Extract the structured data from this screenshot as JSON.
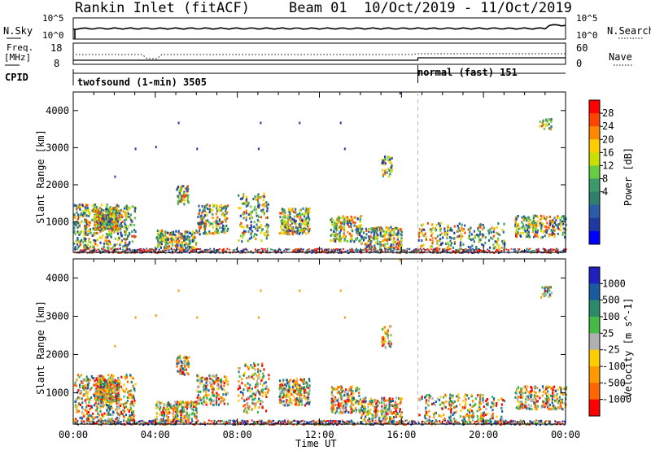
{
  "header": {
    "station": "Rankin Inlet (fitACF)",
    "beam": "Beam 01",
    "date_range": "10/Oct/2019 - 11/Oct/2019"
  },
  "top_panels": {
    "nsky_label": "N.Sky",
    "nsky_tick_top": "10^5",
    "nsky_tick_bottom": "10^0",
    "nsearch_label": "N.Search",
    "nsearch_tick_top": "10^5",
    "nsearch_tick_bottom": "10^0",
    "freq_label_1": "Freq.",
    "freq_label_2": "[MHz]",
    "freq_tick_top": "18",
    "freq_tick_bottom": "8",
    "nave_label": "Nave",
    "nave_tick_top": "60",
    "nave_tick_bottom": "0",
    "cpid_label": "CPID",
    "cpid_mode_1": "twofsound (1-min) 3505",
    "cpid_mode_2": "normal (fast) 151"
  },
  "panels": {
    "power": {
      "ylabel": "Slant Range [km]",
      "cbar_label": "Power [dB]",
      "cbar_ticks": [
        "28",
        "24",
        "20",
        "16",
        "12",
        "8",
        "4"
      ],
      "cbar_colors": [
        "#ff0000",
        "#ff4400",
        "#ff8800",
        "#ffcc00",
        "#ccdd00",
        "#66cc44",
        "#3a9a6a",
        "#2f7f6f",
        "#2a5aaa",
        "#1e3aa0",
        "#0000ff"
      ]
    },
    "velocity": {
      "ylabel": "Slant Range [km]",
      "cbar_label": "Velocity [m s^-1]",
      "cbar_ticks": [
        "1000",
        "500",
        "100",
        "25",
        "-25",
        "-100",
        "-500",
        "-1000"
      ],
      "cbar_colors": [
        "#2020c0",
        "#1a5aa0",
        "#2a8a6a",
        "#44bb44",
        "#b0b0b0",
        "#ffcc00",
        "#ff9900",
        "#ff6600",
        "#ff0000"
      ]
    }
  },
  "xaxis": {
    "label": "Time UT",
    "ticks": [
      "00:00",
      "04:00",
      "08:00",
      "12:00",
      "16:00",
      "20:00",
      "00:00"
    ]
  },
  "chart_data": [
    {
      "type": "heatmap",
      "title": "",
      "xlabel": "Time UT",
      "ylabel": "Slant Range [km]",
      "xlim": [
        0,
        24
      ],
      "ylim": [
        180,
        4500
      ],
      "yticks": [
        1000,
        2000,
        3000,
        4000
      ],
      "colorbar": {
        "label": "Power [dB]",
        "ticks": [
          4,
          8,
          12,
          16,
          20,
          24,
          28
        ]
      },
      "mode_change_hour": 16.8
    },
    {
      "type": "heatmap",
      "title": "",
      "xlabel": "Time UT",
      "ylabel": "Slant Range [km]",
      "xlim": [
        0,
        24
      ],
      "ylim": [
        180,
        4500
      ],
      "yticks": [
        1000,
        2000,
        3000,
        4000
      ],
      "colorbar": {
        "label": "Velocity [m s^-1]",
        "ticks": [
          -1000,
          -500,
          -100,
          -25,
          25,
          100,
          500,
          1000
        ]
      },
      "mode_change_hour": 16.8
    }
  ]
}
